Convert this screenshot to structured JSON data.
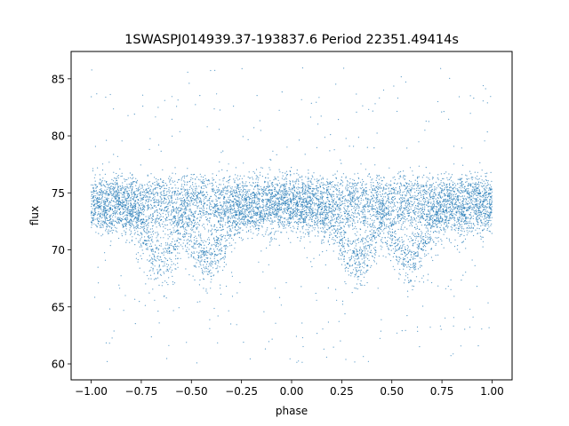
{
  "chart_data": {
    "type": "scatter",
    "title": "1SWASPJ014939.37-193837.6 Period 22351.49414s",
    "xlabel": "phase",
    "ylabel": "flux",
    "xlim": [
      -1.1,
      1.1
    ],
    "ylim": [
      58.6,
      87.4
    ],
    "xticks": [
      -1.0,
      -0.75,
      -0.5,
      -0.25,
      0.0,
      0.25,
      0.5,
      0.75,
      1.0
    ],
    "xtick_labels": [
      "−1.00",
      "−0.75",
      "−0.50",
      "−0.25",
      "0.00",
      "0.25",
      "0.50",
      "0.75",
      "1.00"
    ],
    "yticks": [
      60,
      65,
      70,
      75,
      80,
      85
    ],
    "ytick_labels": [
      "60",
      "65",
      "70",
      "75",
      "80",
      "85"
    ],
    "grid": false,
    "legend": "none",
    "marker_color": "#1f77b4",
    "light_curve": {
      "phase_range": [
        -1.0,
        1.0
      ],
      "out_of_eclipse_flux": 73.7,
      "eclipse_min_flux": 69.3,
      "eclipse_centers_phase": [
        -0.65,
        -0.42,
        0.32,
        0.58
      ],
      "upper_band_flux": [
        72.3,
        76.0
      ],
      "flux_envelope": [
        60,
        86
      ]
    }
  }
}
